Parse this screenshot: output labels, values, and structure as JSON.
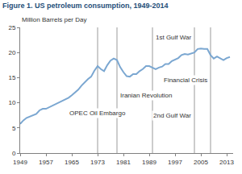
{
  "chart_data": {
    "type": "line",
    "title": "Figure 1. US petroleum consumption, 1949-2014",
    "y_label": "Million Barrels per Day",
    "x": [
      1949,
      1950,
      1951,
      1952,
      1953,
      1954,
      1955,
      1956,
      1957,
      1958,
      1959,
      1960,
      1961,
      1962,
      1963,
      1964,
      1965,
      1966,
      1967,
      1968,
      1969,
      1970,
      1971,
      1972,
      1973,
      1974,
      1975,
      1976,
      1977,
      1978,
      1979,
      1980,
      1981,
      1982,
      1983,
      1984,
      1985,
      1986,
      1987,
      1988,
      1989,
      1990,
      1991,
      1992,
      1993,
      1994,
      1995,
      1996,
      1997,
      1998,
      1999,
      2000,
      2001,
      2002,
      2003,
      2004,
      2005,
      2006,
      2007,
      2008,
      2009,
      2010,
      2011,
      2012,
      2013,
      2014
    ],
    "values": [
      5.8,
      6.5,
      7.0,
      7.3,
      7.6,
      7.8,
      8.5,
      8.8,
      8.8,
      9.1,
      9.5,
      9.8,
      10.0,
      10.4,
      10.7,
      11.0,
      11.5,
      12.1,
      12.6,
      13.4,
      14.1,
      14.7,
      15.2,
      16.4,
      17.3,
      16.7,
      16.3,
      17.5,
      18.4,
      18.8,
      18.5,
      17.1,
      16.1,
      15.3,
      15.2,
      15.7,
      15.7,
      16.3,
      16.7,
      17.3,
      17.3,
      17.0,
      16.7,
      17.0,
      17.2,
      17.7,
      17.7,
      18.3,
      18.6,
      18.9,
      19.5,
      19.7,
      19.6,
      19.8,
      20.0,
      20.7,
      20.8,
      20.7,
      20.7,
      19.5,
      18.8,
      19.2,
      18.9,
      18.5,
      18.9,
      19.1
    ],
    "color": "#7ba7d1",
    "xlim": [
      1949,
      2015
    ],
    "xticks": [
      1949,
      1957,
      1965,
      1973,
      1981,
      1989,
      1997,
      2005,
      2013
    ],
    "ylim": [
      0,
      25
    ],
    "yticks": [
      0,
      5,
      10,
      15,
      20,
      25
    ],
    "grid": false,
    "annotations": [
      {
        "x": 1973,
        "label": "OPEC Oil Embargo"
      },
      {
        "x": 1979,
        "label": "Iranian Revolution"
      },
      {
        "x": 1990,
        "label": "1st Gulf War"
      },
      {
        "x": 2003,
        "label": "2nd Gulf War"
      },
      {
        "x": 2008,
        "label": "Financial Crisis"
      }
    ]
  }
}
